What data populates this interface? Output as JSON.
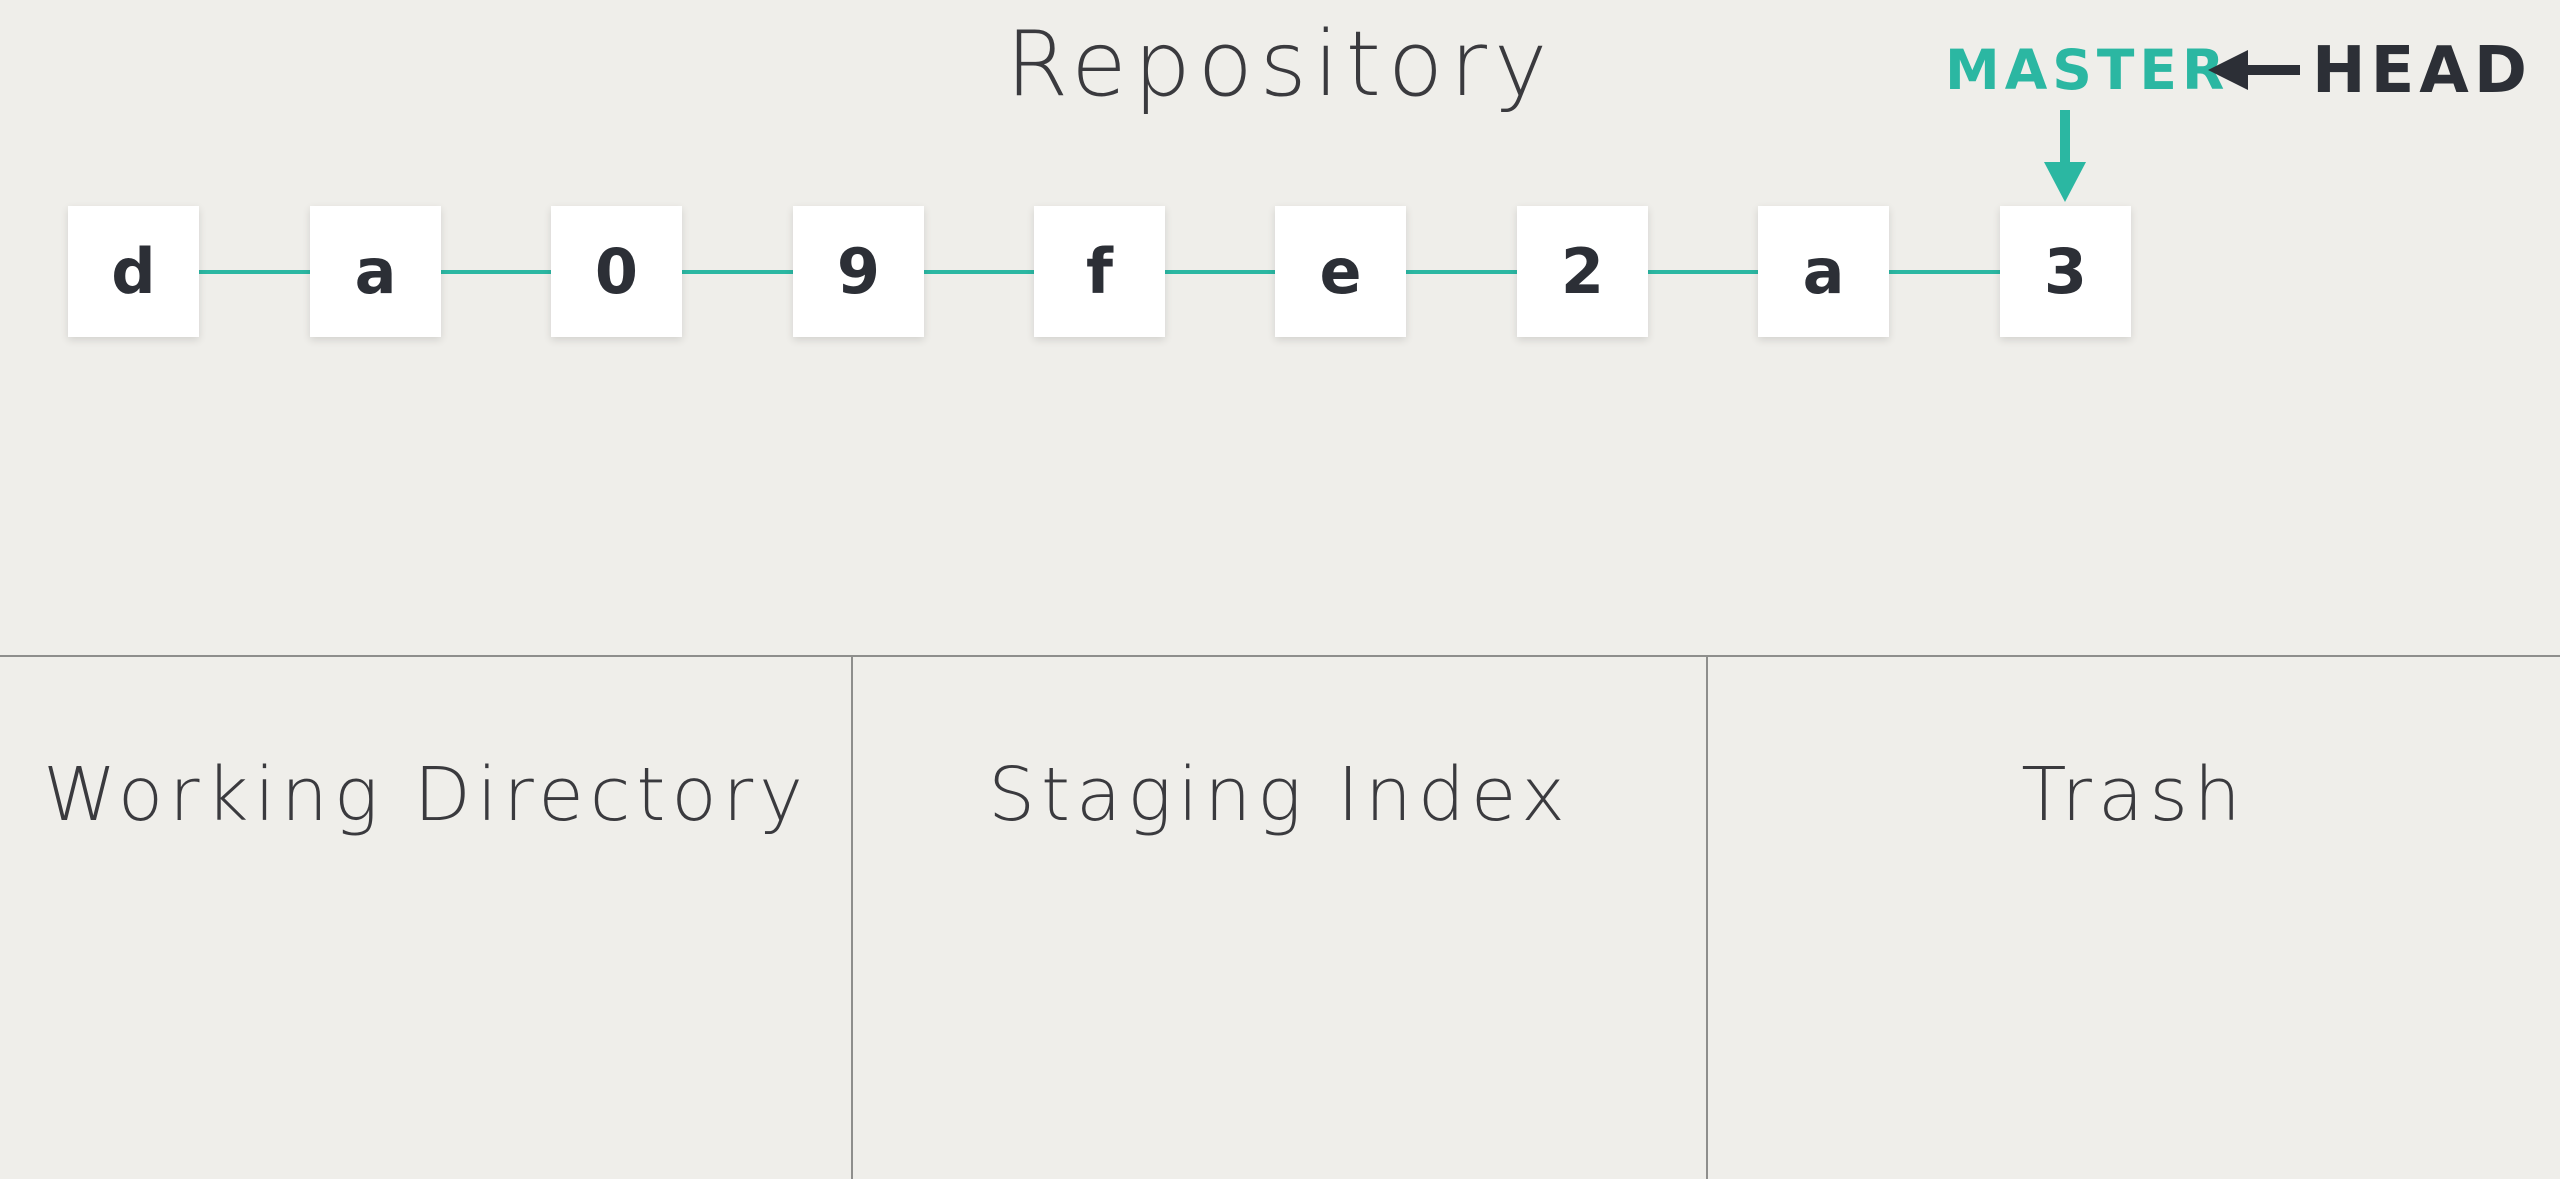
{
  "repository": {
    "title": "Repository",
    "commits": [
      "d",
      "a",
      "0",
      "9",
      "f",
      "e",
      "2",
      "a",
      "3"
    ],
    "branch_label": "MASTER",
    "head_label": "HEAD"
  },
  "areas": {
    "working_directory": "Working Directory",
    "staging_index": "Staging Index",
    "trash": "Trash"
  },
  "colors": {
    "background": "#efeeea",
    "accent": "#2bb7a2",
    "text_dark": "#2c2f36",
    "divider": "#8e8e8c"
  },
  "icons": {
    "head_pointer": "arrow-left-icon",
    "branch_pointer": "arrow-down-icon"
  }
}
